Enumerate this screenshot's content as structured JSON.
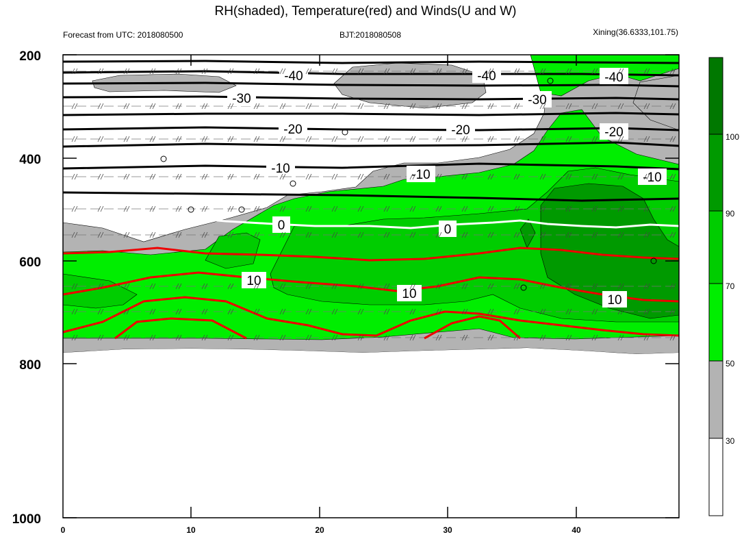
{
  "title": "RH(shaded), Temperature(red) and Winds(U and W)",
  "left_subtitle": "Forecast from UTC: 2018080500",
  "center_subtitle": "BJT:2018080508",
  "right_subtitle": "Xining(36.6333,101.75)",
  "chart_data": {
    "type": "contour",
    "x": {
      "min": 0,
      "max": 48,
      "ticks": [
        0,
        10,
        20,
        30,
        40
      ],
      "tick_labels": [
        "0",
        "10",
        "20",
        "30",
        "40"
      ]
    },
    "y": {
      "scale": "log-pressure",
      "reversed": true,
      "min": 200,
      "max": 1000,
      "ticks": [
        200,
        400,
        600,
        800,
        1000
      ],
      "tick_labels": [
        "200",
        "400",
        "600",
        "800",
        "1000"
      ]
    },
    "colorbar": {
      "levels": [
        30,
        50,
        70,
        90,
        100
      ],
      "level_labels": [
        "30",
        "50",
        "70",
        "90",
        "100"
      ],
      "colors": [
        "#ffffff",
        "#b3b3b3",
        "#00ee00",
        "#00cd00",
        "#009a00",
        "#007800"
      ]
    },
    "temperature_black": [
      {
        "value": -40,
        "label": "-40"
      },
      {
        "value": -30,
        "label": "-30"
      },
      {
        "value": -20,
        "label": "-20"
      },
      {
        "value": -10,
        "label": "-10"
      }
    ],
    "temperature_zero": {
      "value": 0,
      "label": "0",
      "color": "#ffffff"
    },
    "temperature_red": {
      "value": 10,
      "label": "10",
      "color": "#ee0000"
    },
    "colors": {
      "black_contour": "#000000",
      "red_contour": "#ee0000",
      "zero_contour": "#ffffff"
    }
  }
}
